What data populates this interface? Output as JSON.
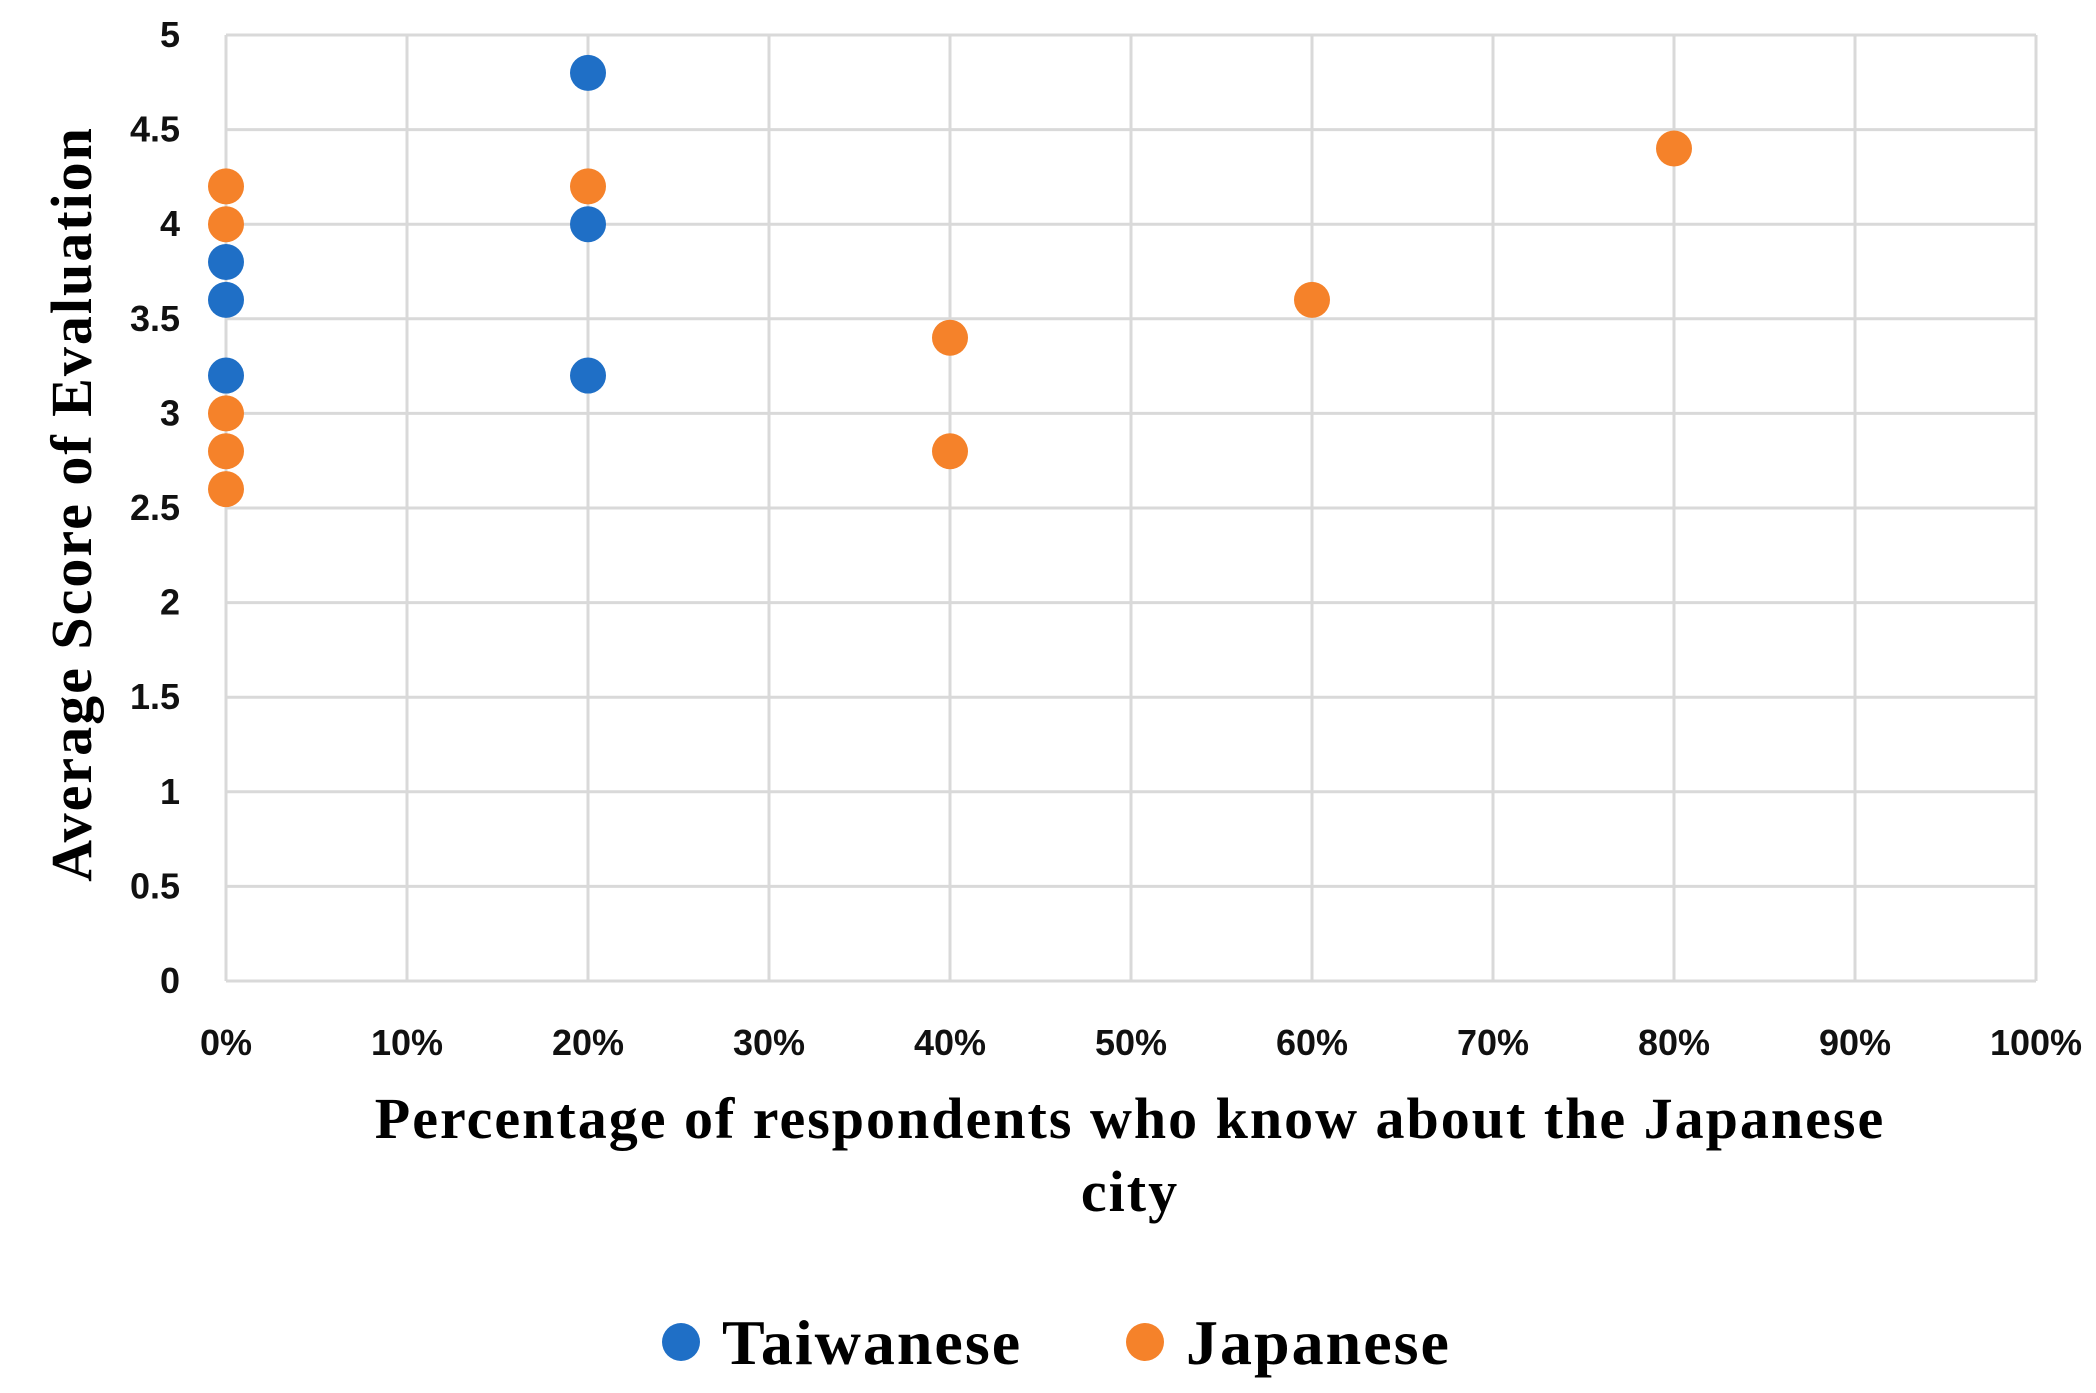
{
  "chart_data": {
    "type": "scatter",
    "xlabel": [
      "Percentage of respondents who know about the Japanese",
      "city"
    ],
    "ylabel": "Average Score of Evaluation",
    "xlim": [
      0,
      100
    ],
    "ylim": [
      0,
      5
    ],
    "x_ticks": [
      "0%",
      "10%",
      "20%",
      "30%",
      "40%",
      "50%",
      "60%",
      "70%",
      "80%",
      "90%",
      "100%"
    ],
    "y_ticks": [
      "0",
      "0.5",
      "1",
      "1.5",
      "2",
      "2.5",
      "3",
      "3.5",
      "4",
      "4.5",
      "5"
    ],
    "grid": true,
    "legend_position": "bottom",
    "series": [
      {
        "name": "Taiwanese",
        "color": "#1f6fc6",
        "points": [
          {
            "x": 0,
            "y": 3.8
          },
          {
            "x": 0,
            "y": 3.6
          },
          {
            "x": 0,
            "y": 3.2
          },
          {
            "x": 20,
            "y": 4.8
          },
          {
            "x": 20,
            "y": 4.0
          },
          {
            "x": 20,
            "y": 3.2
          }
        ]
      },
      {
        "name": "Japanese",
        "color": "#f5822a",
        "points": [
          {
            "x": 0,
            "y": 4.2
          },
          {
            "x": 0,
            "y": 4.0
          },
          {
            "x": 0,
            "y": 3.0
          },
          {
            "x": 0,
            "y": 2.8
          },
          {
            "x": 0,
            "y": 2.6
          },
          {
            "x": 20,
            "y": 4.2
          },
          {
            "x": 40,
            "y": 3.4
          },
          {
            "x": 40,
            "y": 2.8
          },
          {
            "x": 60,
            "y": 3.6
          },
          {
            "x": 80,
            "y": 4.4
          }
        ]
      }
    ]
  }
}
